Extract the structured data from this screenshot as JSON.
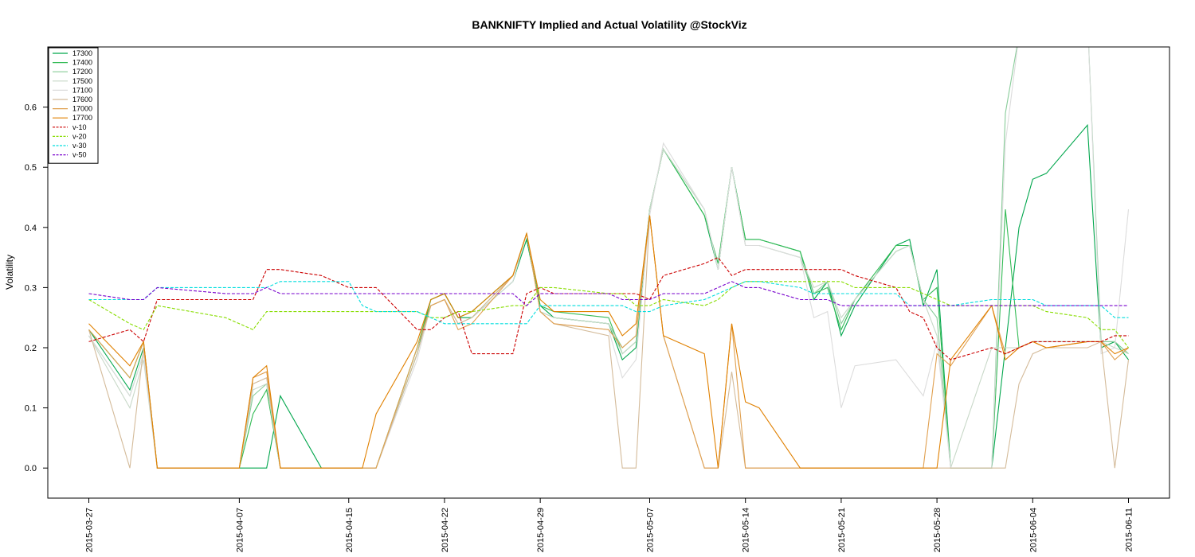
{
  "chart_data": {
    "type": "line",
    "title": "BANKNIFTY Implied and Actual Volatility @StockViz",
    "xlabel": "",
    "ylabel": "Volatility",
    "ylim": [
      -0.05,
      0.7
    ],
    "yticks": [
      0.0,
      0.1,
      0.2,
      0.3,
      0.4,
      0.5,
      0.6
    ],
    "ytick_labels": [
      "0.0",
      "0.1",
      "0.2",
      "0.3",
      "0.4",
      "0.5",
      "0.6"
    ],
    "xlim": [
      "2015-03-24",
      "2015-06-14"
    ],
    "xticks": [
      "2015-03-27",
      "2015-04-07",
      "2015-04-15",
      "2015-04-22",
      "2015-04-29",
      "2015-05-07",
      "2015-05-14",
      "2015-05-21",
      "2015-05-28",
      "2015-06-04",
      "2015-06-11"
    ],
    "grid": false,
    "legend_position": "top-left",
    "dates": [
      "2015-03-27",
      "2015-03-30",
      "2015-03-31",
      "2015-04-01",
      "2015-04-06",
      "2015-04-07",
      "2015-04-08",
      "2015-04-09",
      "2015-04-10",
      "2015-04-13",
      "2015-04-15",
      "2015-04-16",
      "2015-04-17",
      "2015-04-20",
      "2015-04-21",
      "2015-04-22",
      "2015-04-23",
      "2015-04-24",
      "2015-04-27",
      "2015-04-28",
      "2015-04-29",
      "2015-04-30",
      "2015-05-04",
      "2015-05-05",
      "2015-05-06",
      "2015-05-07",
      "2015-05-08",
      "2015-05-11",
      "2015-05-12",
      "2015-05-13",
      "2015-05-14",
      "2015-05-15",
      "2015-05-18",
      "2015-05-19",
      "2015-05-20",
      "2015-05-21",
      "2015-05-22",
      "2015-05-25",
      "2015-05-26",
      "2015-05-27",
      "2015-05-28",
      "2015-05-29",
      "2015-06-01",
      "2015-06-02",
      "2015-06-03",
      "2015-06-04",
      "2015-06-05",
      "2015-06-08",
      "2015-06-09",
      "2015-06-10",
      "2015-06-11"
    ],
    "series": [
      {
        "name": "17300",
        "color": "#00a64c",
        "dash": "",
        "values": [
          0.23,
          0.13,
          0.2,
          0,
          0,
          0,
          0,
          0,
          0.12,
          0,
          0,
          0,
          0,
          0.19,
          0.28,
          0.29,
          0.25,
          0.25,
          0.31,
          0.38,
          0.27,
          0.25,
          0.24,
          0.18,
          0.2,
          0.43,
          0.53,
          0.42,
          0.33,
          0.5,
          0.38,
          0.38,
          0.36,
          0.28,
          0.31,
          0.22,
          0.27,
          0.37,
          0.38,
          0.27,
          0.33,
          0,
          0,
          0.2,
          0.4,
          0.48,
          0.49,
          0.57,
          0.2,
          0.21,
          0.18
        ]
      },
      {
        "name": "17400",
        "color": "#33bb55",
        "dash": "",
        "values": [
          0.23,
          0.15,
          0.21,
          0,
          0,
          0,
          0.09,
          0.13,
          0,
          0,
          0,
          0,
          0,
          0.2,
          0.28,
          0.29,
          0.25,
          0.26,
          0.32,
          0.39,
          0.27,
          0.26,
          0.25,
          0.19,
          0.21,
          0.43,
          0.53,
          0.42,
          0.34,
          0.5,
          0.38,
          0.38,
          0.36,
          0.29,
          0.3,
          0.23,
          0.28,
          0.37,
          0.37,
          0.28,
          0.3,
          0,
          0,
          0.43,
          0.2,
          0.21,
          0.21,
          0.21,
          0.21,
          0.21,
          0.19
        ]
      },
      {
        "name": "17200",
        "color": "#88cc99",
        "dash": "",
        "values": [
          0.22,
          0.12,
          0.19,
          0,
          0,
          0,
          0.12,
          0.14,
          0,
          0,
          0,
          0,
          0,
          0.2,
          0.27,
          0.28,
          0.24,
          0.25,
          0.32,
          0.39,
          0.26,
          0.25,
          0.24,
          0.2,
          0.22,
          0.43,
          0.53,
          0.43,
          0.33,
          0.5,
          0.37,
          0.37,
          0.35,
          0.29,
          0.31,
          0.24,
          0.28,
          0.36,
          0.37,
          0.28,
          0.25,
          0,
          0,
          0.59,
          0.72,
          0.75,
          0.75,
          0.75,
          0.21,
          0.21,
          0.19
        ]
      },
      {
        "name": "17500",
        "color": "#c8d8c8",
        "dash": "",
        "values": [
          0.22,
          0.1,
          0.18,
          0,
          0,
          0,
          0.13,
          0.14,
          0,
          0,
          0,
          0,
          0,
          0.19,
          0.27,
          0.28,
          0.24,
          0.25,
          0.32,
          0.39,
          0.26,
          0.25,
          0.24,
          0.19,
          0.21,
          0.43,
          0.53,
          0.43,
          0.33,
          0.5,
          0.37,
          0.37,
          0.35,
          0.3,
          0.31,
          0.25,
          0.28,
          0.36,
          0.37,
          0.28,
          0.22,
          0,
          0.2,
          0.2,
          0.2,
          0.21,
          0.21,
          0.21,
          0.21,
          0.2,
          0.19
        ]
      },
      {
        "name": "17100",
        "color": "#dcdcdc",
        "dash": "",
        "values": [
          0.22,
          0.12,
          0.19,
          0,
          0,
          0,
          0.14,
          0.15,
          0,
          0,
          0,
          0,
          0,
          0.18,
          0.27,
          0.28,
          0.24,
          0.25,
          0.31,
          0.39,
          0.26,
          0.24,
          0.23,
          0.15,
          0.18,
          0.42,
          0.54,
          0.43,
          0.33,
          0.5,
          0.37,
          0.37,
          0.35,
          0.25,
          0.26,
          0.1,
          0.17,
          0.18,
          0.15,
          0.12,
          0.21,
          0,
          0,
          0.54,
          0.72,
          0.75,
          0.75,
          0.75,
          0.19,
          0.2,
          0.43
        ]
      },
      {
        "name": "17600",
        "color": "#d4bb9a",
        "dash": "",
        "values": [
          0.23,
          0,
          0.2,
          0,
          0,
          0,
          0.14,
          0.15,
          0,
          0,
          0,
          0,
          0,
          0.19,
          0.27,
          0.28,
          0.24,
          0.25,
          0.32,
          0.39,
          0.26,
          0.24,
          0.22,
          0,
          0,
          0.42,
          0.22,
          0,
          0,
          0.16,
          0,
          0,
          0,
          0,
          0,
          0,
          0,
          0,
          0,
          0,
          0,
          0,
          0,
          0,
          0.14,
          0.19,
          0.2,
          0.2,
          0.21,
          0,
          0.18
        ]
      },
      {
        "name": "17000",
        "color": "#e0a050",
        "dash": "",
        "values": [
          0.23,
          0.15,
          0.21,
          0,
          0,
          0,
          0.15,
          0.16,
          0,
          0,
          0,
          0,
          0,
          0.2,
          0.27,
          0.28,
          0.23,
          0.24,
          0.32,
          0.39,
          0.26,
          0.24,
          0.23,
          0.2,
          0.22,
          0.42,
          0.22,
          0,
          0,
          0.24,
          0,
          0,
          0,
          0,
          0,
          0,
          0,
          0,
          0,
          0,
          0.19,
          0.17,
          0.27,
          0.19,
          0.2,
          0.21,
          0.2,
          0.21,
          0.21,
          0.18,
          0.2
        ]
      },
      {
        "name": "17700",
        "color": "#e08000",
        "dash": "",
        "values": [
          0.24,
          0.17,
          0.21,
          0,
          0,
          0,
          0.15,
          0.17,
          0,
          0,
          0,
          0,
          0.09,
          0.21,
          0.28,
          0.29,
          0.25,
          0.26,
          0.32,
          0.39,
          0.28,
          0.26,
          0.26,
          0.22,
          0.24,
          0.42,
          0.22,
          0.19,
          0,
          0.24,
          0.11,
          0.1,
          0,
          0,
          0,
          0,
          0,
          0,
          0,
          0,
          0,
          0.18,
          0.27,
          0.18,
          0.2,
          0.21,
          0.2,
          0.21,
          0.21,
          0.19,
          0.2
        ]
      },
      {
        "name": "v-10",
        "color": "#cc0000",
        "dash": "4,2",
        "values": [
          0.21,
          0.23,
          0.21,
          0.28,
          0.28,
          0.28,
          0.28,
          0.33,
          0.33,
          0.32,
          0.3,
          0.3,
          0.3,
          0.23,
          0.23,
          0.25,
          0.26,
          0.19,
          0.19,
          0.29,
          0.3,
          0.29,
          0.29,
          0.29,
          0.29,
          0.28,
          0.32,
          0.34,
          0.35,
          0.32,
          0.33,
          0.33,
          0.33,
          0.33,
          0.33,
          0.33,
          0.32,
          0.3,
          0.26,
          0.25,
          0.2,
          0.18,
          0.2,
          0.19,
          0.2,
          0.21,
          0.21,
          0.21,
          0.21,
          0.22,
          0.22
        ]
      },
      {
        "name": "v-20",
        "color": "#88dd00",
        "dash": "4,2",
        "values": [
          0.28,
          0.24,
          0.23,
          0.27,
          0.25,
          0.24,
          0.23,
          0.26,
          0.26,
          0.26,
          0.26,
          0.26,
          0.26,
          0.26,
          0.25,
          0.25,
          0.26,
          0.26,
          0.27,
          0.27,
          0.3,
          0.3,
          0.29,
          0.29,
          0.27,
          0.27,
          0.28,
          0.27,
          0.28,
          0.3,
          0.31,
          0.31,
          0.31,
          0.31,
          0.31,
          0.31,
          0.3,
          0.3,
          0.3,
          0.29,
          0.28,
          0.27,
          0.27,
          0.27,
          0.27,
          0.27,
          0.26,
          0.25,
          0.23,
          0.23,
          0.2
        ]
      },
      {
        "name": "v-30",
        "color": "#00dddd",
        "dash": "4,2",
        "values": [
          0.28,
          0.28,
          0.28,
          0.3,
          0.3,
          0.3,
          0.3,
          0.3,
          0.31,
          0.31,
          0.31,
          0.27,
          0.26,
          0.26,
          0.25,
          0.24,
          0.24,
          0.24,
          0.24,
          0.24,
          0.27,
          0.27,
          0.27,
          0.27,
          0.26,
          0.26,
          0.27,
          0.28,
          0.29,
          0.3,
          0.31,
          0.31,
          0.3,
          0.29,
          0.29,
          0.29,
          0.29,
          0.29,
          0.27,
          0.27,
          0.27,
          0.27,
          0.28,
          0.28,
          0.28,
          0.28,
          0.27,
          0.27,
          0.27,
          0.25,
          0.25
        ]
      },
      {
        "name": "v-50",
        "color": "#7700cc",
        "dash": "4,2",
        "values": [
          0.29,
          0.28,
          0.28,
          0.3,
          0.29,
          0.29,
          0.29,
          0.3,
          0.29,
          0.29,
          0.29,
          0.29,
          0.29,
          0.29,
          0.29,
          0.29,
          0.29,
          0.29,
          0.29,
          0.27,
          0.29,
          0.29,
          0.29,
          0.28,
          0.28,
          0.28,
          0.29,
          0.29,
          0.3,
          0.31,
          0.3,
          0.3,
          0.28,
          0.28,
          0.28,
          0.27,
          0.27,
          0.27,
          0.27,
          0.27,
          0.27,
          0.27,
          0.27,
          0.27,
          0.27,
          0.27,
          0.27,
          0.27,
          0.27,
          0.27,
          0.27
        ]
      }
    ]
  }
}
